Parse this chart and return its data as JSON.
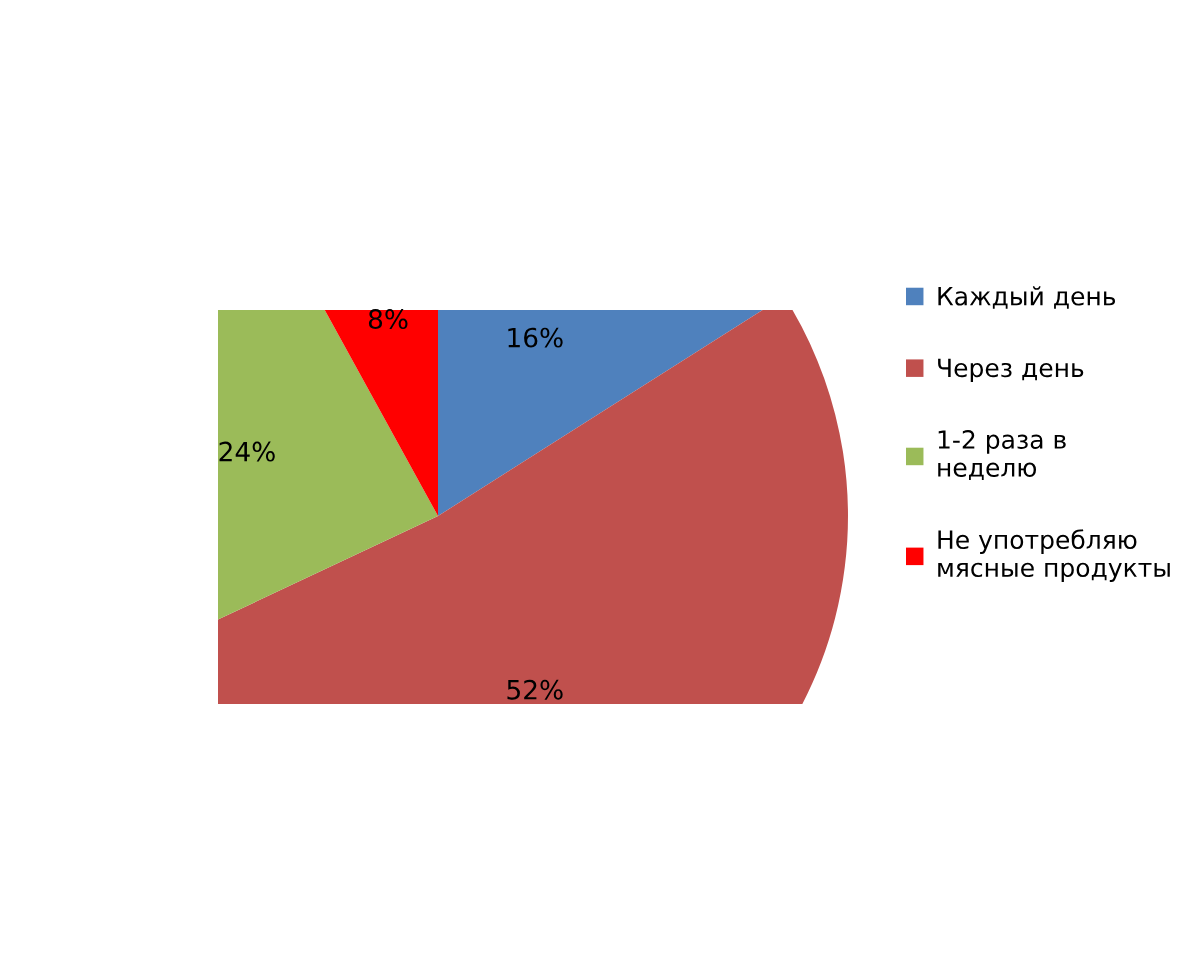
{
  "chart_data": {
    "type": "pie",
    "categories": [
      "Каждый день",
      "Через день",
      "1-2 раза в неделю",
      "Не употребляю мясные продукты"
    ],
    "values": [
      16,
      52,
      24,
      8
    ],
    "colors": [
      "#4f81bd",
      "#c0504d",
      "#9bbb59",
      "#ff0000"
    ],
    "value_labels": [
      "16%",
      "52%",
      "24%",
      "8%"
    ],
    "legend": "right"
  }
}
